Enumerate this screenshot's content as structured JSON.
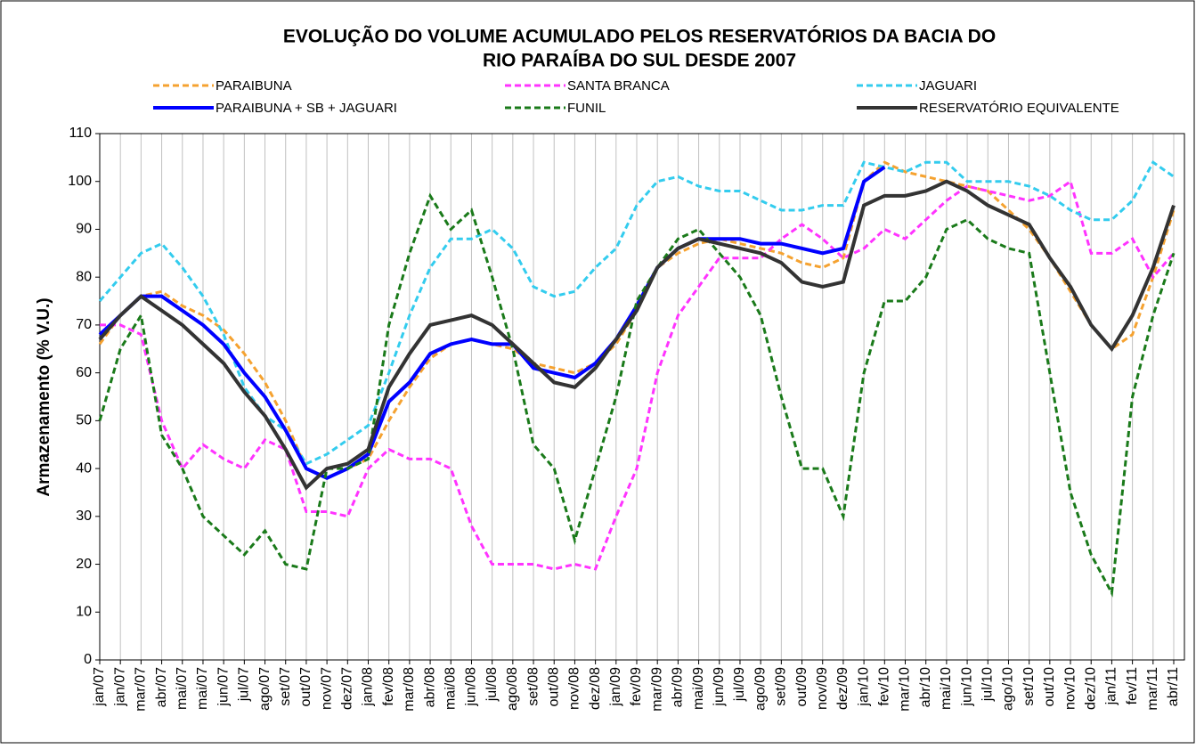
{
  "chart_data": {
    "type": "line",
    "title": [
      "EVOLUÇÃO DO VOLUME ACUMULADO PELOS RESERVATÓRIOS DA BACIA DO",
      "RIO PARAÍBA DO SUL DESDE 2007"
    ],
    "y_label": "Armazenamento (% V.U.)",
    "categories": [
      "jan/07",
      "jan/07",
      "mar/07",
      "abr/07",
      "mai/07",
      "mai/07",
      "jun/07",
      "jul/07",
      "ago/07",
      "set/07",
      "out/07",
      "nov/07",
      "dez/07",
      "jan/08",
      "fev/08",
      "mar/08",
      "abr/08",
      "mai/08",
      "jun/08",
      "jul/08",
      "ago/08",
      "set/08",
      "out/08",
      "nov/08",
      "dez/08",
      "jan/09",
      "fev/09",
      "mar/09",
      "abr/09",
      "mai/09",
      "jun/09",
      "jul/09",
      "ago/09",
      "set/09",
      "out/09",
      "nov/09",
      "dez/09",
      "jan/10",
      "fev/10",
      "mar/10",
      "abr/10",
      "mai/10",
      "jun/10",
      "jul/10",
      "ago/10",
      "set/10",
      "out/10",
      "nov/10",
      "dez/10",
      "jan/11",
      "fev/11",
      "mar/11",
      "abr/11"
    ],
    "ylim": [
      0,
      110
    ],
    "yticks": [
      0,
      10,
      20,
      30,
      40,
      50,
      60,
      70,
      80,
      90,
      100,
      110
    ],
    "grid": "x",
    "series": [
      {
        "name": "PARAIBUNA",
        "color": "#f5a230",
        "dashed": true,
        "values": [
          66,
          72,
          76,
          77,
          74,
          72,
          69,
          64,
          58,
          50,
          40,
          38,
          40,
          42,
          50,
          57,
          63,
          66,
          67,
          66,
          65,
          62,
          61,
          60,
          62,
          66,
          73,
          82,
          85,
          87,
          88,
          87,
          86,
          85,
          83,
          82,
          84,
          100,
          104,
          102,
          101,
          100,
          99,
          98,
          94,
          90,
          84,
          77,
          70,
          65,
          68,
          80,
          94
        ]
      },
      {
        "name": "SANTA BRANCA",
        "color": "#ff33ff",
        "dashed": true,
        "values": [
          70,
          70,
          68,
          50,
          40,
          45,
          42,
          40,
          46,
          44,
          31,
          31,
          30,
          40,
          44,
          42,
          42,
          40,
          28,
          20,
          20,
          20,
          19,
          20,
          19,
          30,
          40,
          60,
          72,
          78,
          84,
          84,
          84,
          88,
          91,
          88,
          84,
          86,
          90,
          88,
          92,
          96,
          99,
          98,
          97,
          96,
          97,
          100,
          85,
          85,
          88,
          80,
          85
        ]
      },
      {
        "name": "JAGUARI",
        "color": "#33ccee",
        "dashed": true,
        "values": [
          75,
          80,
          85,
          87,
          82,
          76,
          68,
          57,
          51,
          48,
          41,
          43,
          46,
          49,
          60,
          72,
          82,
          88,
          88,
          90,
          86,
          78,
          76,
          77,
          82,
          86,
          95,
          100,
          101,
          99,
          98,
          98,
          96,
          94,
          94,
          95,
          95,
          104,
          103,
          102,
          104,
          104,
          100,
          100,
          100,
          99,
          97,
          94,
          92,
          92,
          96,
          104,
          101
        ]
      },
      {
        "name": "PARAIBUNA + SB + JAGUARI",
        "color": "#0000ff",
        "dashed": false,
        "values": [
          68,
          72,
          76,
          76,
          73,
          70,
          66,
          60,
          55,
          48,
          40,
          38,
          40,
          43,
          54,
          58,
          64,
          66,
          67,
          66,
          66,
          61,
          60,
          59,
          62,
          67,
          74,
          82,
          86,
          88,
          88,
          88,
          87,
          87,
          86,
          85,
          86,
          100,
          103,
          null,
          null,
          null,
          null,
          null,
          null,
          null,
          null,
          null,
          null,
          null,
          null,
          null,
          null
        ]
      },
      {
        "name": "FUNIL",
        "color": "#1a7a1a",
        "dashed": true,
        "values": [
          50,
          65,
          72,
          47,
          40,
          30,
          26,
          22,
          27,
          20,
          19,
          40,
          40,
          42,
          70,
          85,
          97,
          90,
          94,
          80,
          65,
          45,
          40,
          25,
          40,
          55,
          75,
          82,
          88,
          90,
          85,
          80,
          72,
          55,
          40,
          40,
          30,
          60,
          75,
          75,
          80,
          90,
          92,
          88,
          86,
          85,
          60,
          35,
          22,
          14,
          55,
          72,
          85
        ]
      },
      {
        "name": "RESERVATÓRIO EQUIVALENTE",
        "color": "#333333",
        "dashed": false,
        "values": [
          67,
          72,
          76,
          73,
          70,
          66,
          62,
          56,
          51,
          44,
          36,
          40,
          41,
          44,
          57,
          64,
          70,
          71,
          72,
          70,
          66,
          62,
          58,
          57,
          61,
          67,
          73,
          82,
          86,
          88,
          87,
          86,
          85,
          83,
          79,
          78,
          79,
          95,
          97,
          97,
          98,
          100,
          98,
          95,
          93,
          91,
          84,
          78,
          70,
          65,
          72,
          82,
          95
        ]
      }
    ]
  }
}
